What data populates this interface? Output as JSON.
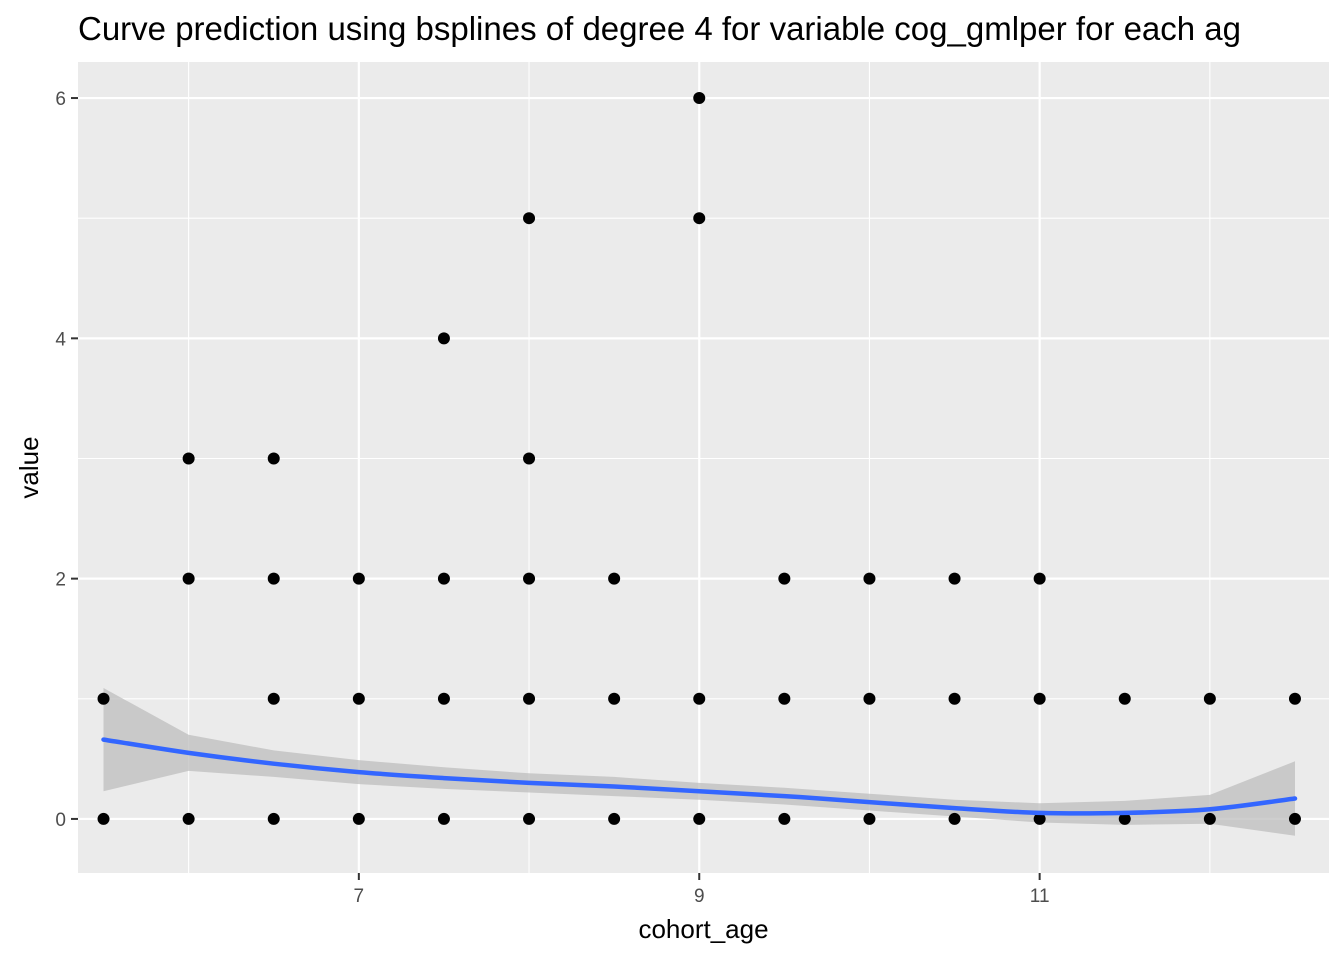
{
  "chart_data": {
    "type": "scatter",
    "title": "Curve prediction using bsplines of degree 4  for variable cog_gmlper for each ag",
    "xlabel": "cohort_age",
    "ylabel": "value",
    "xlim": [
      5.35,
      12.7
    ],
    "ylim": [
      -0.45,
      6.3
    ],
    "x_ticks": [
      7,
      9,
      11
    ],
    "x_tick_labels": [
      "7",
      "9",
      "11"
    ],
    "x_minor_ticks": [
      6,
      8,
      10,
      12
    ],
    "y_ticks": [
      0,
      2,
      4,
      6
    ],
    "y_tick_labels": [
      "0",
      "2",
      "4",
      "6"
    ],
    "y_minor_ticks": [
      1,
      3,
      5
    ],
    "grid": true,
    "legend": "none",
    "colors": {
      "panel": "#ebebeb",
      "grid": "#ffffff",
      "points": "#000000",
      "smooth_line": "#3366ff",
      "ribbon": "#bdbdbd"
    },
    "points": [
      {
        "x": 5.5,
        "y": 1
      },
      {
        "x": 5.5,
        "y": 0
      },
      {
        "x": 6.0,
        "y": 3
      },
      {
        "x": 6.0,
        "y": 2
      },
      {
        "x": 6.0,
        "y": 0
      },
      {
        "x": 6.5,
        "y": 3
      },
      {
        "x": 6.5,
        "y": 2
      },
      {
        "x": 6.5,
        "y": 1
      },
      {
        "x": 6.5,
        "y": 0
      },
      {
        "x": 7.0,
        "y": 2
      },
      {
        "x": 7.0,
        "y": 1
      },
      {
        "x": 7.0,
        "y": 0
      },
      {
        "x": 7.5,
        "y": 4
      },
      {
        "x": 7.5,
        "y": 2
      },
      {
        "x": 7.5,
        "y": 1
      },
      {
        "x": 7.5,
        "y": 0
      },
      {
        "x": 8.0,
        "y": 5
      },
      {
        "x": 8.0,
        "y": 3
      },
      {
        "x": 8.0,
        "y": 2
      },
      {
        "x": 8.0,
        "y": 1
      },
      {
        "x": 8.0,
        "y": 0
      },
      {
        "x": 8.5,
        "y": 2
      },
      {
        "x": 8.5,
        "y": 1
      },
      {
        "x": 8.5,
        "y": 0
      },
      {
        "x": 9.0,
        "y": 6
      },
      {
        "x": 9.0,
        "y": 5
      },
      {
        "x": 9.0,
        "y": 1
      },
      {
        "x": 9.0,
        "y": 0
      },
      {
        "x": 9.5,
        "y": 2
      },
      {
        "x": 9.5,
        "y": 1
      },
      {
        "x": 9.5,
        "y": 0
      },
      {
        "x": 10.0,
        "y": 2
      },
      {
        "x": 10.0,
        "y": 1
      },
      {
        "x": 10.0,
        "y": 0
      },
      {
        "x": 10.5,
        "y": 2
      },
      {
        "x": 10.5,
        "y": 1
      },
      {
        "x": 10.5,
        "y": 0
      },
      {
        "x": 11.0,
        "y": 2
      },
      {
        "x": 11.0,
        "y": 1
      },
      {
        "x": 11.0,
        "y": 0
      },
      {
        "x": 11.5,
        "y": 1
      },
      {
        "x": 11.5,
        "y": 0
      },
      {
        "x": 12.0,
        "y": 1
      },
      {
        "x": 12.0,
        "y": 0
      },
      {
        "x": 12.5,
        "y": 1
      },
      {
        "x": 12.5,
        "y": 0
      }
    ],
    "smooth": {
      "x": [
        5.5,
        6.0,
        6.5,
        7.0,
        7.5,
        8.0,
        8.5,
        9.0,
        9.5,
        10.0,
        10.5,
        11.0,
        11.5,
        12.0,
        12.5
      ],
      "y": [
        0.66,
        0.55,
        0.46,
        0.39,
        0.34,
        0.3,
        0.27,
        0.23,
        0.19,
        0.14,
        0.09,
        0.05,
        0.05,
        0.08,
        0.17
      ],
      "lower": [
        0.23,
        0.4,
        0.35,
        0.29,
        0.25,
        0.22,
        0.19,
        0.16,
        0.12,
        0.07,
        0.02,
        -0.03,
        -0.05,
        -0.04,
        -0.14
      ],
      "upper": [
        1.09,
        0.7,
        0.57,
        0.49,
        0.43,
        0.38,
        0.35,
        0.3,
        0.26,
        0.21,
        0.16,
        0.13,
        0.15,
        0.2,
        0.48
      ]
    }
  }
}
